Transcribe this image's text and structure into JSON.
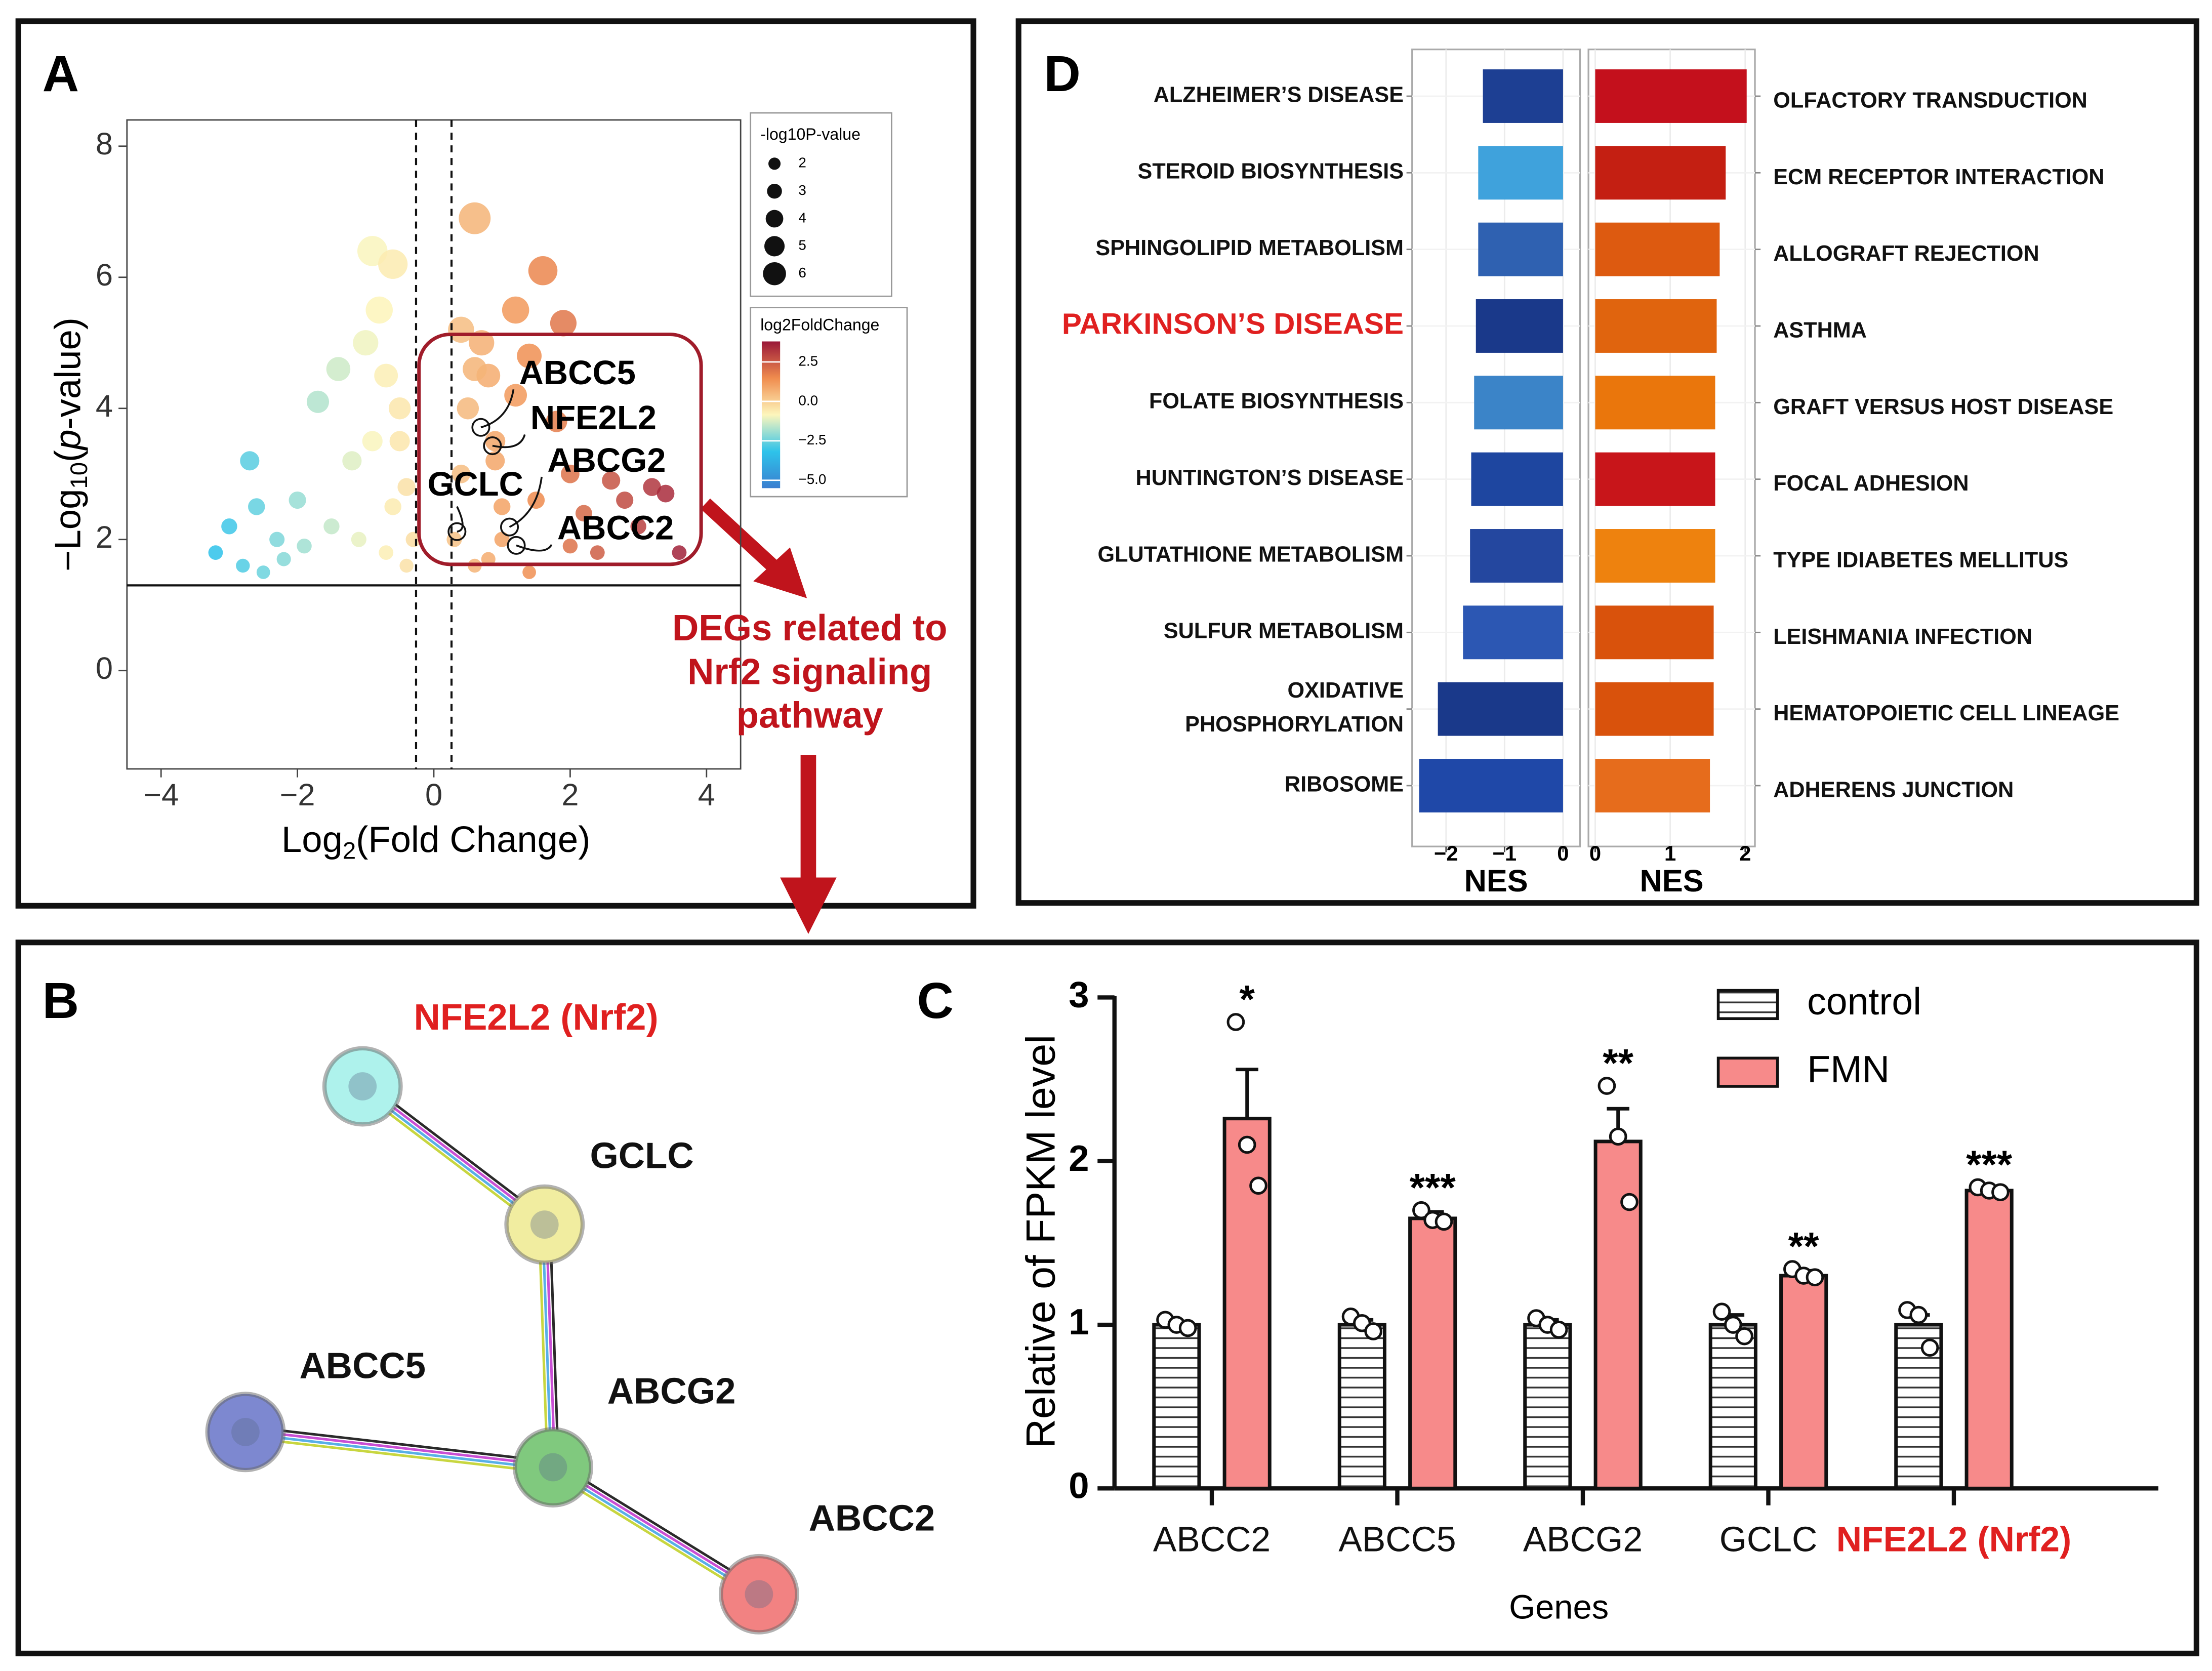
{
  "chart_data": [
    {
      "type": "scatter",
      "panel": "A",
      "xlabel": [
        "Log",
        "2",
        "(Fold Change)"
      ],
      "ylabel": [
        "−Log",
        "10",
        "(",
        "p",
        "-value)"
      ],
      "x": [
        -3.2,
        -3.0,
        -2.8,
        -2.7,
        -2.6,
        -2.5,
        -2.3,
        -2.2,
        -2.0,
        -1.9,
        -1.7,
        -1.5,
        -1.4,
        -1.2,
        -1.0,
        -0.9,
        -0.8,
        -0.7,
        -0.6,
        -0.5,
        -0.4,
        -0.3,
        -0.9,
        -0.6,
        -0.4,
        -1.1,
        -0.7,
        -0.5,
        0.3,
        0.4,
        0.5,
        0.6,
        0.7,
        0.8,
        0.9,
        1.0,
        1.2,
        1.4,
        1.6,
        1.8,
        2.0,
        2.2,
        2.4,
        2.6,
        2.8,
        3.0,
        3.2,
        3.4,
        3.6,
        0.4,
        0.6,
        0.9,
        1.2,
        1.5,
        1.9,
        0.6,
        1.0,
        1.4,
        2.0,
        0.8
      ],
      "y": [
        1.8,
        2.2,
        1.6,
        3.2,
        2.5,
        1.5,
        2.0,
        1.7,
        2.6,
        1.9,
        4.1,
        2.2,
        4.6,
        3.2,
        5.0,
        6.4,
        5.5,
        4.5,
        6.2,
        3.5,
        2.8,
        2.0,
        3.5,
        2.5,
        1.6,
        2.0,
        1.8,
        4.0,
        2.0,
        3.0,
        4.0,
        6.9,
        5.0,
        4.5,
        3.5,
        2.5,
        5.5,
        4.8,
        6.1,
        3.8,
        3.0,
        2.4,
        1.8,
        2.9,
        2.6,
        2.2,
        2.8,
        2.7,
        1.8,
        5.2,
        4.6,
        3.2,
        4.2,
        2.6,
        5.3,
        1.6,
        2.0,
        1.5,
        1.9,
        1.7
      ],
      "xlim": [
        -4.5,
        4.5
      ],
      "ylim": [
        -1.5,
        8.4
      ],
      "xticks": [
        {
          "value": -4,
          "label": "−4"
        },
        {
          "value": -2,
          "label": "−2"
        },
        0,
        2,
        4
      ],
      "yticks": [
        0,
        2,
        4,
        6,
        8
      ],
      "vlines": [
        -0.26,
        0.26
      ],
      "hline": 1.3,
      "highlights": [
        {
          "label": "ABCC5",
          "x": 0.69,
          "y": 3.71
        },
        {
          "label": "NFE2L2",
          "x": 0.86,
          "y": 3.43
        },
        {
          "label": "ABCG2",
          "x": 1.11,
          "y": 2.19
        },
        {
          "label": "GCLC",
          "x": 0.34,
          "y": 2.12
        },
        {
          "label": "ABCC2",
          "x": 1.21,
          "y": 1.91
        }
      ],
      "annotation": [
        "DEGs related to",
        "Nrf2 signaling",
        "pathway"
      ],
      "size_legend": {
        "title": "-log10P-value",
        "values": [
          2,
          3,
          4,
          5,
          6
        ]
      },
      "colorbar": {
        "title": "log2FoldChange",
        "range": [
          -5.5,
          3.8
        ],
        "colors": [
          "#3a7fd0",
          "#2ec3ea",
          "#fdf6bc",
          "#f08c4e",
          "#9a1838"
        ],
        "ticks": [
          {
            "value": 2.5,
            "label": "2.5"
          },
          {
            "value": 0,
            "label": "0.0"
          },
          {
            "value": -2.5,
            "label": "−2.5"
          },
          {
            "value": -5,
            "label": "−5.0"
          }
        ]
      }
    },
    {
      "type": "barh",
      "panel": "D",
      "side": "left",
      "categories": [
        "ALZHEIMER’S DISEASE",
        "STEROID BIOSYNTHESIS",
        "SPHINGOLIPID METABOLISM",
        "PARKINSON’S DISEASE",
        "FOLATE BIOSYNTHESIS",
        "HUNTINGTON’S DISEASE",
        "GLUTATHIONE METABOLISM",
        "SULFUR METABOLISM",
        [
          "OXIDATIVE",
          "PHOSPHORYLATION"
        ],
        "RIBOSOME"
      ],
      "values": [
        -1.37,
        -1.45,
        -1.45,
        -1.49,
        -1.52,
        -1.57,
        -1.59,
        -1.71,
        -2.14,
        -2.46
      ],
      "colors": [
        "#1d3f93",
        "#3fa2dc",
        "#2f61b1",
        "#1a398a",
        "#3b84c8",
        "#1e46a0",
        "#24479f",
        "#2c57b3",
        "#1a398a",
        "#1f48a8"
      ],
      "highlight": 3,
      "highlight_color": "#e02020",
      "xlim": [
        -2.58,
        0.29
      ],
      "xticks": [
        {
          "value": -2,
          "label": "−2"
        },
        {
          "value": -1,
          "label": "−1"
        },
        0
      ],
      "xlabel": "NES"
    },
    {
      "type": "barh",
      "side": "right",
      "categories": [
        "OLFACTORY TRANSDUCTION",
        "ECM RECEPTOR INTERACTION",
        "ALLOGRAFT REJECTION",
        "ASTHMA",
        "GRAFT VERSUS HOST DISEASE",
        "FOCAL ADHESION",
        "TYPE IDIABETES MELLITUS",
        "LEISHMANIA INFECTION",
        "HEMATOPOIETIC CELL LINEAGE",
        "ADHERENS JUNCTION"
      ],
      "values": [
        2.02,
        1.74,
        1.66,
        1.62,
        1.6,
        1.6,
        1.6,
        1.58,
        1.58,
        1.53
      ],
      "colors": [
        "#c4101c",
        "#c41f12",
        "#dd5a10",
        "#e0640e",
        "#ea760c",
        "#c8151a",
        "#ee820e",
        "#d9520c",
        "#d9520c",
        "#e66c1c"
      ],
      "xlim": [
        -0.09,
        2.13
      ],
      "xticks": [
        0,
        1,
        2
      ],
      "xlabel": "NES"
    },
    {
      "type": "bar",
      "panel": "C",
      "categories": [
        "ABCC2",
        "ABCC5",
        "ABCG2",
        "GCLC",
        "NFE2L2 (Nrf2)"
      ],
      "highlight": 4,
      "highlight_color": "#e02020",
      "series": [
        {
          "name": "control",
          "color": "#ffffff",
          "hatch": true,
          "values": [
            1,
            1,
            1,
            1,
            1
          ],
          "errors": [
            0.02,
            0.03,
            0.03,
            0.06,
            0.06
          ],
          "points": [
            [
              1.03,
              1.0,
              0.98
            ],
            [
              1.05,
              1.01,
              0.96
            ],
            [
              1.04,
              1.0,
              0.97
            ],
            [
              1.08,
              1.0,
              0.93
            ],
            [
              1.09,
              1.06,
              0.86
            ]
          ]
        },
        {
          "name": "FMN",
          "color": "#f78a8a",
          "values": [
            2.26,
            1.65,
            2.12,
            1.3,
            1.82
          ],
          "errors": [
            0.3,
            0.04,
            0.2,
            0.03,
            0.02
          ],
          "points": [
            [
              2.85,
              2.1,
              1.85
            ],
            [
              1.7,
              1.64,
              1.63
            ],
            [
              2.46,
              2.15,
              1.75
            ],
            [
              1.34,
              1.3,
              1.29
            ],
            [
              1.84,
              1.82,
              1.81
            ]
          ]
        }
      ],
      "significance": [
        "*",
        "***",
        "**",
        "**",
        "***"
      ],
      "ylim": [
        0,
        3
      ],
      "yticks": [
        0,
        1,
        2,
        3
      ],
      "xlabel": "Genes",
      "ylabel": "Relative of FPKM level"
    }
  ],
  "network": {
    "panel": "B",
    "nodes": [
      {
        "label": "NFE2L2 (Nrf2)",
        "color": "#aef2ec",
        "highlight": true
      },
      {
        "label": "GCLC",
        "color": "#f1eda0"
      },
      {
        "label": "ABCC5",
        "color": "#7d88d0"
      },
      {
        "label": "ABCG2",
        "color": "#80c97e"
      },
      {
        "label": "ABCC2",
        "color": "#f28282"
      }
    ],
    "edges": [
      [
        0,
        1
      ],
      [
        1,
        3
      ],
      [
        2,
        3
      ],
      [
        3,
        4
      ]
    ],
    "highlight_color": "#e02020"
  }
}
